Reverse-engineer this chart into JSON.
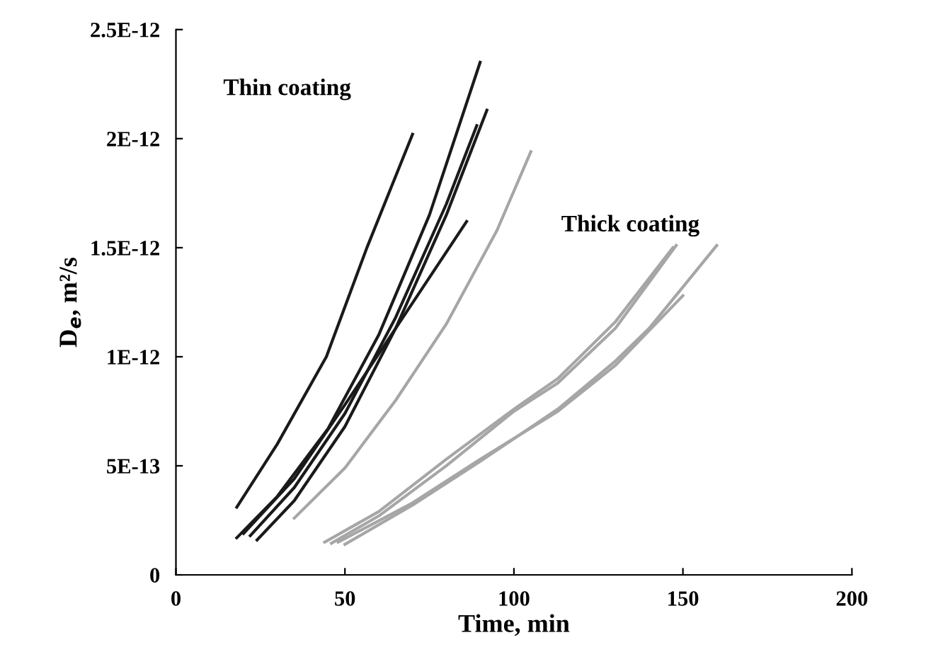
{
  "chart_data": {
    "type": "line",
    "xlabel": "Time, min",
    "ylabel": "D$_{e}$, m²/s",
    "annotations": [
      "Thin coating",
      "Thick coating"
    ],
    "series": [
      {
        "color": "#1a1a1a",
        "x": [
          18,
          30,
          44.5,
          56.5,
          70
        ],
        "values": [
          3.1e-13,
          6e-13,
          1e-12,
          1.5e-12,
          2.02e-12
        ]
      },
      {
        "color": "#1a1a1a",
        "x": [
          18,
          30,
          45,
          60,
          75,
          90
        ],
        "values": [
          1.7e-13,
          3.6e-13,
          6.7e-13,
          1.1e-12,
          1.65e-12,
          2.35e-12
        ]
      },
      {
        "color": "#1a1a1a",
        "x": [
          22,
          35,
          50,
          65,
          80,
          89
        ],
        "values": [
          1.8e-13,
          4e-13,
          7.4e-13,
          1.18e-12,
          1.7e-12,
          2.06e-12
        ]
      },
      {
        "color": "#1a1a1a",
        "x": [
          24,
          35,
          50,
          65,
          80,
          92
        ],
        "values": [
          1.6e-13,
          3.4e-13,
          6.8e-13,
          1.13e-12,
          1.65e-12,
          2.13e-12
        ]
      },
      {
        "color": "#1a1a1a",
        "x": [
          20,
          35,
          50,
          65,
          86
        ],
        "values": [
          1.9e-13,
          4.4e-13,
          7.8e-13,
          1.13e-12,
          1.62e-12
        ]
      },
      {
        "color": "#a6a6a6",
        "x": [
          35,
          50,
          65,
          80,
          95,
          105
        ],
        "values": [
          2.6e-13,
          4.9e-13,
          8e-13,
          1.15e-12,
          1.58e-12,
          1.94e-12
        ]
      },
      {
        "color": "#a6a6a6",
        "x": [
          44,
          60,
          80,
          100,
          113,
          130,
          147
        ],
        "values": [
          1.5e-13,
          2.9e-13,
          5.3e-13,
          7.6e-13,
          9e-13,
          1.16e-12,
          1.5e-12
        ]
      },
      {
        "color": "#a6a6a6",
        "x": [
          46,
          60,
          80,
          100,
          113,
          130,
          148
        ],
        "values": [
          1.45e-13,
          2.7e-13,
          5e-13,
          7.5e-13,
          8.8e-13,
          1.13e-12,
          1.51e-12
        ]
      },
      {
        "color": "#a6a6a6",
        "x": [
          50,
          70,
          90,
          113,
          130,
          140,
          150,
          160
        ],
        "values": [
          1.4e-13,
          3.2e-13,
          5.2e-13,
          7.6e-13,
          9.8e-13,
          1.13e-12,
          1.32e-12,
          1.51e-12
        ]
      },
      {
        "color": "#a6a6a6",
        "x": [
          48,
          70,
          90,
          113,
          130,
          150
        ],
        "values": [
          1.5e-13,
          3.3e-13,
          5.3e-13,
          7.5e-13,
          9.6e-13,
          1.28e-12
        ]
      }
    ],
    "xlim": [
      0,
      200
    ],
    "xticks": [
      0,
      50,
      100,
      150,
      200
    ],
    "ylim": [
      0,
      2.5e-12
    ],
    "yticks": [
      {
        "value": 0,
        "label": "0"
      },
      {
        "value": 5e-13,
        "label": "5E-13"
      },
      {
        "value": 1e-12,
        "label": "1E-12"
      },
      {
        "value": 1.5e-12,
        "label": "1.5E-12"
      },
      {
        "value": 2e-12,
        "label": "2E-12"
      },
      {
        "value": 2.5e-12,
        "label": "2.5E-12"
      }
    ],
    "grid": false,
    "legend": false,
    "marker": "none",
    "line_style": "solid"
  }
}
